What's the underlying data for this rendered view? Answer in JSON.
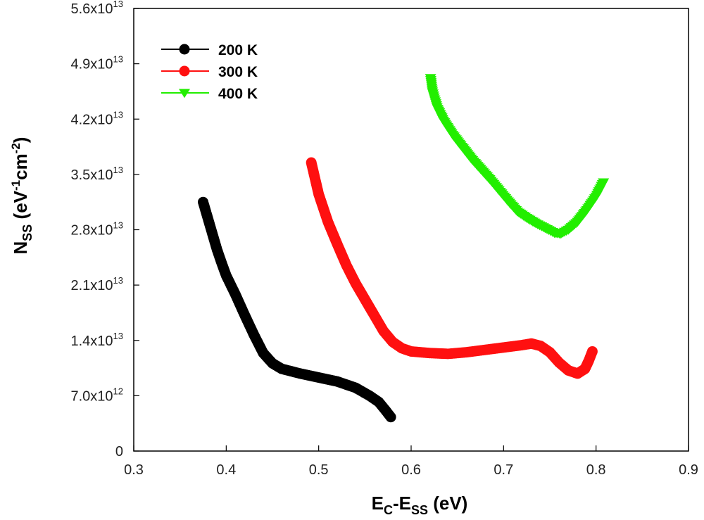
{
  "chart_data": {
    "type": "scatter",
    "title": "",
    "xlabel": {
      "main": "E",
      "sub1": "C",
      "mid": "-E",
      "sub2": "SS",
      "tail": " (eV)"
    },
    "ylabel": {
      "main": "N",
      "sub": "SS",
      "unit_open": " (eV",
      "sup1": "-1",
      "unit_mid": "cm",
      "sup2": "-2",
      "unit_close": ")"
    },
    "xlim": [
      0.3,
      0.9
    ],
    "ylim": [
      0,
      56000000000000.0
    ],
    "x_ticks": [
      {
        "value": 0.3,
        "label": "0.3"
      },
      {
        "value": 0.4,
        "label": "0.4"
      },
      {
        "value": 0.5,
        "label": "0.5"
      },
      {
        "value": 0.6,
        "label": "0.6"
      },
      {
        "value": 0.7,
        "label": "0.7"
      },
      {
        "value": 0.8,
        "label": "0.8"
      },
      {
        "value": 0.9,
        "label": "0.9"
      }
    ],
    "y_ticks": [
      {
        "value": 0,
        "mantissa": "0",
        "exp": ""
      },
      {
        "value": 7000000000000.0,
        "mantissa": "7.0x10",
        "exp": "12"
      },
      {
        "value": 14000000000000.0,
        "mantissa": "1.4x10",
        "exp": "13"
      },
      {
        "value": 21000000000000.0,
        "mantissa": "2.1x10",
        "exp": "13"
      },
      {
        "value": 28000000000000.0,
        "mantissa": "2.8x10",
        "exp": "13"
      },
      {
        "value": 35000000000000.0,
        "mantissa": "3.5x10",
        "exp": "13"
      },
      {
        "value": 42000000000000.0,
        "mantissa": "4.2x10",
        "exp": "13"
      },
      {
        "value": 49000000000000.0,
        "mantissa": "4.9x10",
        "exp": "13"
      },
      {
        "value": 56000000000000.0,
        "mantissa": "5.6x10",
        "exp": "13"
      }
    ],
    "grid": false,
    "legend_position": "top-left",
    "series": [
      {
        "name": "200 K",
        "color": "#000000",
        "marker": "circle",
        "points": [
          [
            0.375,
            31500000000000.0
          ],
          [
            0.38,
            29500000000000.0
          ],
          [
            0.385,
            27500000000000.0
          ],
          [
            0.39,
            25500000000000.0
          ],
          [
            0.395,
            23800000000000.0
          ],
          [
            0.4,
            22200000000000.0
          ],
          [
            0.41,
            19800000000000.0
          ],
          [
            0.42,
            17200000000000.0
          ],
          [
            0.43,
            14700000000000.0
          ],
          [
            0.44,
            12400000000000.0
          ],
          [
            0.45,
            11100000000000.0
          ],
          [
            0.46,
            10400000000000.0
          ],
          [
            0.48,
            9800000000000.0
          ],
          [
            0.5,
            9300000000000.0
          ],
          [
            0.52,
            8800000000000.0
          ],
          [
            0.54,
            8000000000000.0
          ],
          [
            0.555,
            7000000000000.0
          ],
          [
            0.565,
            6200000000000.0
          ],
          [
            0.572,
            5200000000000.0
          ],
          [
            0.578,
            4300000000000.0
          ]
        ]
      },
      {
        "name": "300 K",
        "color": "#ff1010",
        "marker": "circle",
        "points": [
          [
            0.492,
            36500000000000.0
          ],
          [
            0.495,
            35000000000000.0
          ],
          [
            0.5,
            32500000000000.0
          ],
          [
            0.51,
            29000000000000.0
          ],
          [
            0.52,
            26200000000000.0
          ],
          [
            0.53,
            23500000000000.0
          ],
          [
            0.54,
            21200000000000.0
          ],
          [
            0.55,
            19200000000000.0
          ],
          [
            0.56,
            17200000000000.0
          ],
          [
            0.57,
            15200000000000.0
          ],
          [
            0.58,
            13800000000000.0
          ],
          [
            0.59,
            13000000000000.0
          ],
          [
            0.6,
            12600000000000.0
          ],
          [
            0.62,
            12400000000000.0
          ],
          [
            0.64,
            12300000000000.0
          ],
          [
            0.66,
            12500000000000.0
          ],
          [
            0.68,
            12800000000000.0
          ],
          [
            0.7,
            13100000000000.0
          ],
          [
            0.72,
            13400000000000.0
          ],
          [
            0.73,
            13600000000000.0
          ],
          [
            0.74,
            13300000000000.0
          ],
          [
            0.75,
            12500000000000.0
          ],
          [
            0.76,
            11200000000000.0
          ],
          [
            0.77,
            10200000000000.0
          ],
          [
            0.78,
            9800000000000.0
          ],
          [
            0.788,
            10400000000000.0
          ],
          [
            0.792,
            11400000000000.0
          ],
          [
            0.796,
            12600000000000.0
          ]
        ]
      },
      {
        "name": "400 K",
        "color": "#22ee00",
        "marker": "triangle-down",
        "points": [
          [
            0.621,
            47200000000000.0
          ],
          [
            0.623,
            45500000000000.0
          ],
          [
            0.628,
            43500000000000.0
          ],
          [
            0.635,
            41800000000000.0
          ],
          [
            0.645,
            40000000000000.0
          ],
          [
            0.655,
            38500000000000.0
          ],
          [
            0.665,
            37000000000000.0
          ],
          [
            0.675,
            35700000000000.0
          ],
          [
            0.685,
            34400000000000.0
          ],
          [
            0.695,
            33000000000000.0
          ],
          [
            0.705,
            31600000000000.0
          ],
          [
            0.715,
            30300000000000.0
          ],
          [
            0.725,
            29500000000000.0
          ],
          [
            0.735,
            28800000000000.0
          ],
          [
            0.745,
            28200000000000.0
          ],
          [
            0.755,
            27600000000000.0
          ],
          [
            0.762,
            27500000000000.0
          ],
          [
            0.77,
            28000000000000.0
          ],
          [
            0.78,
            29000000000000.0
          ],
          [
            0.79,
            30500000000000.0
          ],
          [
            0.8,
            32200000000000.0
          ],
          [
            0.808,
            34000000000000.0
          ]
        ]
      }
    ]
  }
}
